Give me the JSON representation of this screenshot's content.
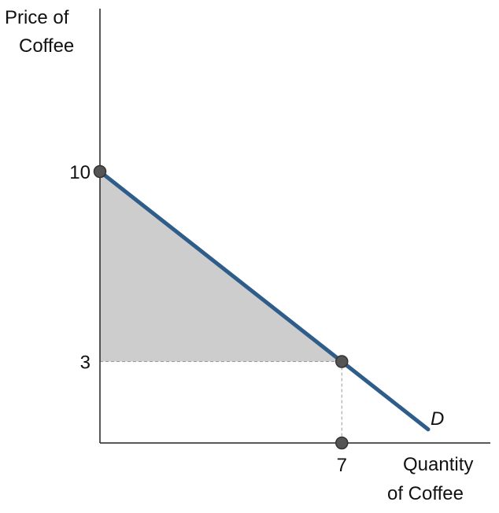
{
  "chart_data": {
    "type": "line",
    "xlabel": "Quantity of Coffee",
    "ylabel": "Price of Coffee",
    "xlabel_lines": [
      "Quantity",
      "of Coffee"
    ],
    "ylabel_lines": [
      "Price of",
      "Coffee"
    ],
    "series": [
      {
        "name": "D",
        "x": [
          0,
          7,
          9.5
        ],
        "y": [
          10,
          3,
          0.5
        ]
      }
    ],
    "highlight_points": [
      {
        "x": 0,
        "y": 10
      },
      {
        "x": 7,
        "y": 3
      },
      {
        "x": 7,
        "y": 0
      }
    ],
    "shaded_area": {
      "vertices": [
        {
          "x": 0,
          "y": 10
        },
        {
          "x": 7,
          "y": 3
        },
        {
          "x": 0,
          "y": 3
        }
      ],
      "color": "#cdcdcd"
    },
    "guide_lines": [
      {
        "from": {
          "x": 0,
          "y": 3
        },
        "to": {
          "x": 7,
          "y": 3
        }
      },
      {
        "from": {
          "x": 7,
          "y": 3
        },
        "to": {
          "x": 7,
          "y": 0
        }
      }
    ],
    "x_ticks": [
      {
        "value": 7,
        "label": "7"
      }
    ],
    "y_ticks": [
      {
        "value": 10,
        "label": "10"
      },
      {
        "value": 3,
        "label": "3"
      }
    ],
    "xlim": [
      0,
      11.3
    ],
    "ylim": [
      0,
      16
    ],
    "grid": false,
    "line_color": "#2f5d8a"
  }
}
